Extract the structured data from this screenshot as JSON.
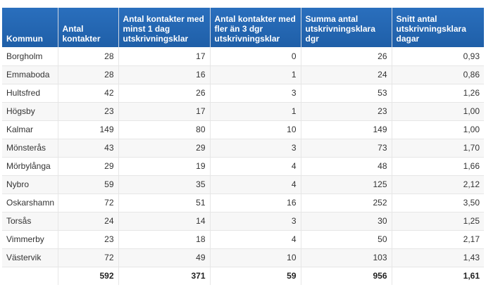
{
  "table": {
    "headers": [
      "Kommun",
      "Antal kontakter",
      "Antal kontakter med minst 1 dag utskrivningsklar",
      "Antal kontakter med fler än 3 dgr utskrivningsklar",
      "Summa antal utskrivningsklara dgr",
      "Snitt antal utskrivningsklara dagar"
    ],
    "rows": [
      [
        "Borgholm",
        "28",
        "17",
        "0",
        "26",
        "0,93"
      ],
      [
        "Emmaboda",
        "28",
        "16",
        "1",
        "24",
        "0,86"
      ],
      [
        "Hultsfred",
        "42",
        "26",
        "3",
        "53",
        "1,26"
      ],
      [
        "Högsby",
        "23",
        "17",
        "1",
        "23",
        "1,00"
      ],
      [
        "Kalmar",
        "149",
        "80",
        "10",
        "149",
        "1,00"
      ],
      [
        "Mönsterås",
        "43",
        "29",
        "3",
        "73",
        "1,70"
      ],
      [
        "Mörbylånga",
        "29",
        "19",
        "4",
        "48",
        "1,66"
      ],
      [
        "Nybro",
        "59",
        "35",
        "4",
        "125",
        "2,12"
      ],
      [
        "Oskarshamn",
        "72",
        "51",
        "16",
        "252",
        "3,50"
      ],
      [
        "Torsås",
        "24",
        "14",
        "3",
        "30",
        "1,25"
      ],
      [
        "Vimmerby",
        "23",
        "18",
        "4",
        "50",
        "2,17"
      ],
      [
        "Västervik",
        "72",
        "49",
        "10",
        "103",
        "1,43"
      ]
    ],
    "total": [
      "",
      "592",
      "371",
      "59",
      "956",
      "1,61"
    ]
  },
  "colors": {
    "header_bg": "#1f5fa8",
    "header_text": "#ffffff",
    "row_alt_bg": "#f7f7f7"
  }
}
